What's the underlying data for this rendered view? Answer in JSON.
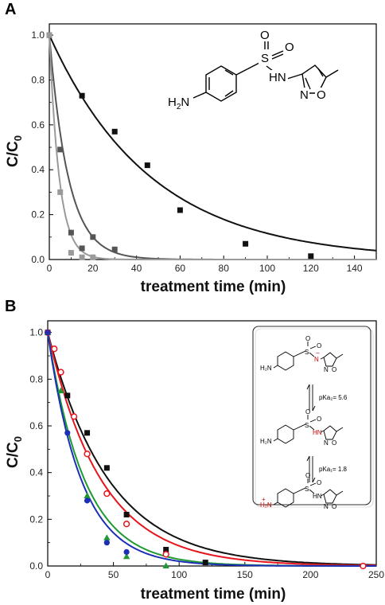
{
  "chart_data": [
    {
      "panel": "A",
      "type": "scatter",
      "xlabel": "treatment time (min)",
      "ylabel": "C/C0",
      "xlim": [
        0,
        150
      ],
      "ylim": [
        0,
        1.05
      ],
      "xticks": [
        0,
        20,
        40,
        60,
        80,
        100,
        120,
        140
      ],
      "yticks": [
        0.0,
        0.2,
        0.4,
        0.6,
        0.8,
        1.0
      ],
      "series": [
        {
          "color": "#111111",
          "marker": "square-filled",
          "x": [
            0,
            15,
            30,
            45,
            60,
            90,
            120
          ],
          "y": [
            1.0,
            0.73,
            0.57,
            0.42,
            0.22,
            0.07,
            0.015
          ],
          "fit": {
            "kind": "exponential",
            "k": 0.0215
          }
        },
        {
          "color": "#555555",
          "marker": "square-filled",
          "x": [
            0,
            5,
            10,
            15,
            20,
            30
          ],
          "y": [
            1.0,
            0.49,
            0.12,
            0.05,
            0.1,
            0.045
          ],
          "fit": {
            "kind": "exponential",
            "k": 0.115
          }
        },
        {
          "color": "#9a9a9a",
          "marker": "square-filled",
          "x": [
            0,
            5,
            10,
            15,
            20
          ],
          "y": [
            1.0,
            0.3,
            0.03,
            0.01,
            0.01
          ],
          "fit": {
            "kind": "exponential",
            "k": 0.22
          }
        }
      ],
      "inset": {
        "atoms": {
          "amine": "H2N",
          "nh": "HN",
          "s": "S",
          "o1": "O",
          "o2": "O",
          "n": "N",
          "o3": "O"
        }
      }
    },
    {
      "panel": "B",
      "type": "scatter",
      "xlabel": "treatment time (min)",
      "ylabel": "C/C0",
      "xlim": [
        0,
        250
      ],
      "ylim": [
        0,
        1.05
      ],
      "xticks": [
        0,
        50,
        100,
        150,
        200,
        250
      ],
      "yticks": [
        0.0,
        0.2,
        0.4,
        0.6,
        0.8,
        1.0
      ],
      "series": [
        {
          "color": "#111111",
          "marker": "square-filled",
          "x": [
            0,
            15,
            30,
            45,
            60,
            90,
            120
          ],
          "y": [
            1.0,
            0.73,
            0.57,
            0.42,
            0.22,
            0.07,
            0.015
          ],
          "fit": {
            "kind": "exponential",
            "k": 0.0215
          }
        },
        {
          "color": "#e8141c",
          "marker": "circle-open",
          "x": [
            0,
            5,
            10,
            20,
            30,
            45,
            60,
            90,
            240
          ],
          "y": [
            1.0,
            0.93,
            0.83,
            0.64,
            0.48,
            0.31,
            0.18,
            0.05,
            0.0
          ],
          "fit": {
            "kind": "exponential",
            "k": 0.0245
          }
        },
        {
          "color": "#1f9a33",
          "marker": "triangle-filled",
          "x": [
            0,
            10,
            30,
            45,
            60,
            90
          ],
          "y": [
            1.0,
            0.75,
            0.3,
            0.12,
            0.04,
            0.0
          ],
          "fit": {
            "kind": "exponential",
            "k": 0.0355
          }
        },
        {
          "color": "#1c2fb5",
          "marker": "circle-filled",
          "x": [
            0,
            15,
            30,
            45,
            60
          ],
          "y": [
            1.0,
            0.57,
            0.28,
            0.1,
            0.06
          ],
          "fit": {
            "kind": "exponential",
            "k": 0.039
          }
        }
      ],
      "inset": {
        "pka2": "pKa₂= 5.6",
        "pka1": "pKa₁= 1.8",
        "atoms": {
          "amine": "H₂N",
          "amine_plus": "+",
          "s": "S",
          "o": "O",
          "n_minus": "N",
          "minus": "−",
          "hn": "HN",
          "n": "N"
        }
      }
    }
  ]
}
